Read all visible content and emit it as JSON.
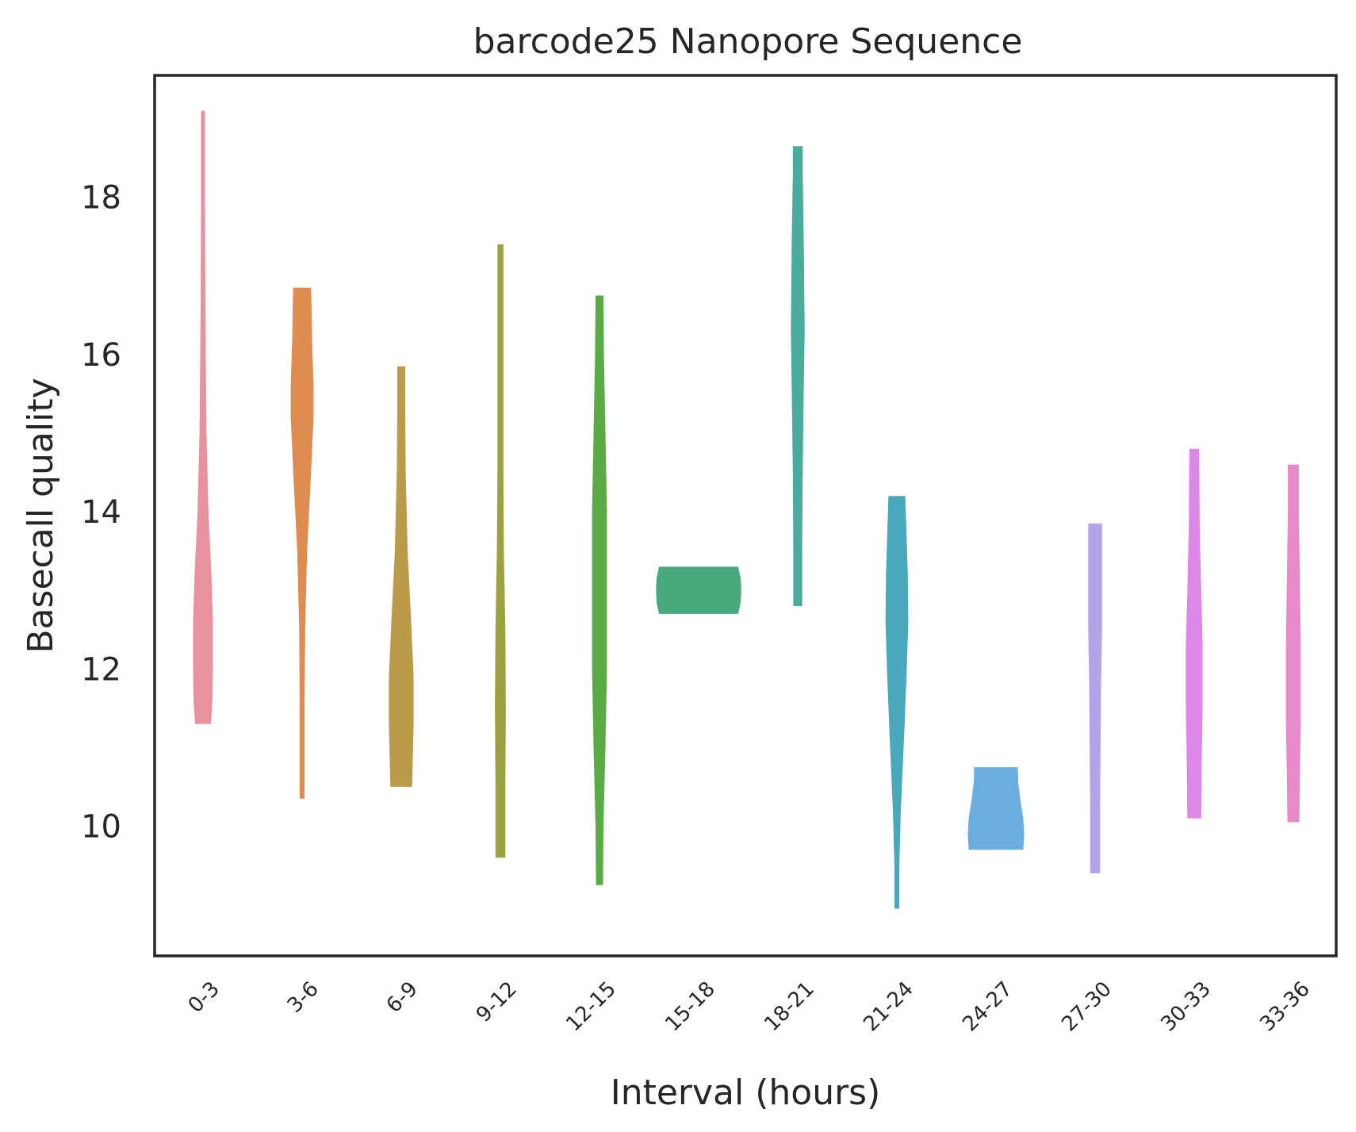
{
  "chart_data": {
    "type": "violin",
    "title": "barcode25 Nanopore Sequence",
    "xlabel": "Interval (hours)",
    "ylabel": "Basecall quality",
    "ylim": [
      8.35,
      19.55
    ],
    "yticks": [
      10,
      12,
      14,
      16,
      18
    ],
    "grid": false,
    "categories": [
      "0-3",
      "3-6",
      "6-9",
      "9-12",
      "12-15",
      "15-18",
      "18-21",
      "21-24",
      "24-27",
      "27-30",
      "30-33",
      "33-36"
    ],
    "colors": [
      "#e8929e",
      "#de8c50",
      "#bb9a49",
      "#9ba23f",
      "#5aab45",
      "#48a97f",
      "#4bab9e",
      "#4aa8bd",
      "#6aaee0",
      "#b3a3e8",
      "#dd88e8",
      "#e78ac8"
    ],
    "violins": [
      {
        "min": 11.3,
        "max": 19.1,
        "profile": [
          [
            11.3,
            0.16
          ],
          [
            11.6,
            0.19
          ],
          [
            12.0,
            0.2
          ],
          [
            12.6,
            0.2
          ],
          [
            13.2,
            0.17
          ],
          [
            14.0,
            0.11
          ],
          [
            15.0,
            0.07
          ],
          [
            16.5,
            0.05
          ],
          [
            18.0,
            0.04
          ],
          [
            19.1,
            0.04
          ]
        ]
      },
      {
        "min": 10.35,
        "max": 16.85,
        "profile": [
          [
            10.35,
            0.05
          ],
          [
            11.5,
            0.05
          ],
          [
            12.5,
            0.06
          ],
          [
            13.5,
            0.1
          ],
          [
            14.5,
            0.18
          ],
          [
            15.2,
            0.23
          ],
          [
            15.6,
            0.23
          ],
          [
            16.2,
            0.2
          ],
          [
            16.6,
            0.19
          ],
          [
            16.85,
            0.18
          ]
        ]
      },
      {
        "min": 10.5,
        "max": 15.85,
        "profile": [
          [
            10.5,
            0.22
          ],
          [
            10.8,
            0.23
          ],
          [
            11.3,
            0.25
          ],
          [
            11.9,
            0.25
          ],
          [
            12.6,
            0.2
          ],
          [
            13.5,
            0.13
          ],
          [
            14.5,
            0.09
          ],
          [
            15.3,
            0.08
          ],
          [
            15.85,
            0.08
          ]
        ]
      },
      {
        "min": 9.6,
        "max": 17.4,
        "profile": [
          [
            9.6,
            0.1
          ],
          [
            10.5,
            0.1
          ],
          [
            11.5,
            0.11
          ],
          [
            12.5,
            0.1
          ],
          [
            13.5,
            0.07
          ],
          [
            14.5,
            0.06
          ],
          [
            16.0,
            0.06
          ],
          [
            17.4,
            0.06
          ]
        ]
      },
      {
        "min": 9.25,
        "max": 16.75,
        "profile": [
          [
            9.25,
            0.07
          ],
          [
            10.0,
            0.08
          ],
          [
            11.0,
            0.12
          ],
          [
            12.0,
            0.15
          ],
          [
            13.0,
            0.15
          ],
          [
            14.0,
            0.15
          ],
          [
            15.0,
            0.12
          ],
          [
            16.0,
            0.09
          ],
          [
            16.75,
            0.08
          ]
        ]
      },
      {
        "min": 12.7,
        "max": 13.3,
        "profile": [
          [
            12.7,
            0.8
          ],
          [
            12.85,
            0.85
          ],
          [
            13.0,
            0.86
          ],
          [
            13.15,
            0.85
          ],
          [
            13.3,
            0.8
          ]
        ]
      },
      {
        "min": 12.8,
        "max": 18.65,
        "profile": [
          [
            12.8,
            0.09
          ],
          [
            13.5,
            0.09
          ],
          [
            14.5,
            0.1
          ],
          [
            15.5,
            0.12
          ],
          [
            16.3,
            0.14
          ],
          [
            17.5,
            0.12
          ],
          [
            18.3,
            0.1
          ],
          [
            18.65,
            0.1
          ]
        ]
      },
      {
        "min": 8.95,
        "max": 14.2,
        "profile": [
          [
            8.95,
            0.05
          ],
          [
            9.5,
            0.05
          ],
          [
            10.2,
            0.08
          ],
          [
            11.2,
            0.15
          ],
          [
            12.0,
            0.2
          ],
          [
            12.6,
            0.23
          ],
          [
            13.2,
            0.22
          ],
          [
            13.8,
            0.19
          ],
          [
            14.2,
            0.17
          ]
        ]
      },
      {
        "min": 9.7,
        "max": 10.75,
        "profile": [
          [
            9.7,
            0.55
          ],
          [
            9.9,
            0.57
          ],
          [
            10.1,
            0.55
          ],
          [
            10.35,
            0.49
          ],
          [
            10.55,
            0.45
          ],
          [
            10.75,
            0.44
          ]
        ]
      },
      {
        "min": 9.4,
        "max": 13.85,
        "profile": [
          [
            9.4,
            0.1
          ],
          [
            10.2,
            0.1
          ],
          [
            11.0,
            0.11
          ],
          [
            11.8,
            0.12
          ],
          [
            12.5,
            0.14
          ],
          [
            13.2,
            0.14
          ],
          [
            13.85,
            0.14
          ]
        ]
      },
      {
        "min": 10.1,
        "max": 14.8,
        "profile": [
          [
            10.1,
            0.14
          ],
          [
            10.8,
            0.15
          ],
          [
            11.5,
            0.17
          ],
          [
            12.3,
            0.17
          ],
          [
            13.0,
            0.14
          ],
          [
            13.8,
            0.11
          ],
          [
            14.8,
            0.1
          ]
        ]
      },
      {
        "min": 10.05,
        "max": 14.6,
        "profile": [
          [
            10.05,
            0.12
          ],
          [
            10.6,
            0.13
          ],
          [
            11.3,
            0.15
          ],
          [
            12.3,
            0.15
          ],
          [
            13.2,
            0.13
          ],
          [
            14.0,
            0.11
          ],
          [
            14.6,
            0.11
          ]
        ]
      }
    ]
  }
}
